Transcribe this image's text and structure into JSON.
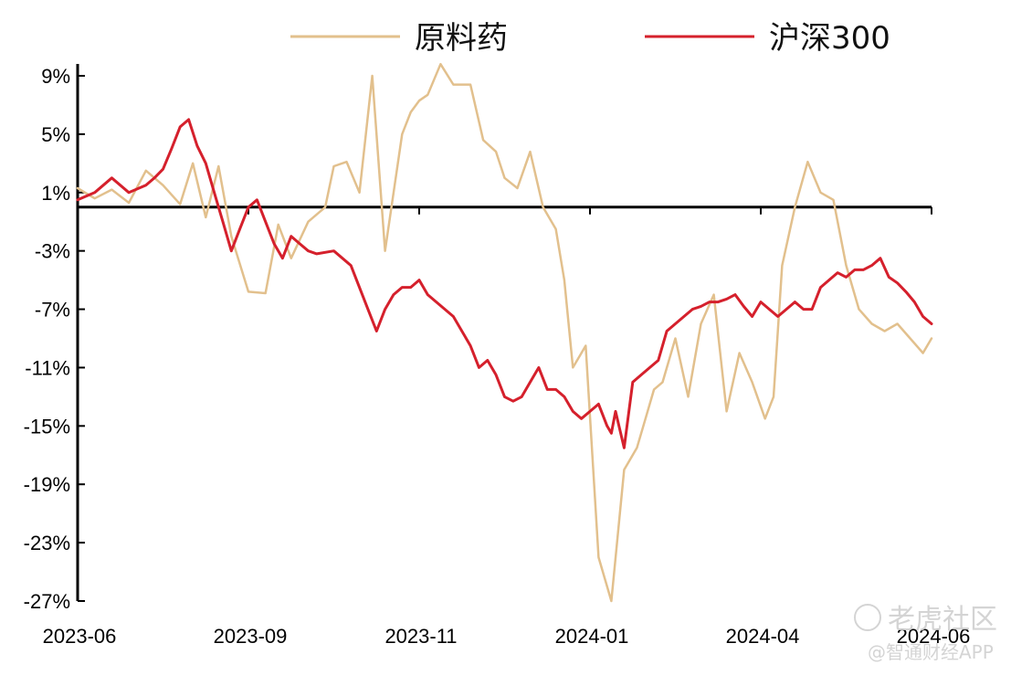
{
  "chart_data": {
    "type": "line",
    "title": "",
    "xlabel": "",
    "ylabel": "",
    "ylim": [
      -27,
      11
    ],
    "y_ticks": [
      "9%",
      "5%",
      "1%",
      "-3%",
      "-7%",
      "-11%",
      "-15%",
      "-19%",
      "-23%",
      "-27%"
    ],
    "x_ticks": [
      "2023-06",
      "2023-09",
      "2023-11",
      "2024-01",
      "2024-04",
      "2024-06"
    ],
    "baseline": 0,
    "legend_position": "top",
    "series": [
      {
        "name": "原料药",
        "color": "#e2c08d",
        "x": [
          0,
          0.02,
          0.04,
          0.06,
          0.08,
          0.1,
          0.12,
          0.135,
          0.15,
          0.165,
          0.18,
          0.2,
          0.22,
          0.235,
          0.25,
          0.27,
          0.29,
          0.3,
          0.315,
          0.33,
          0.345,
          0.36,
          0.38,
          0.39,
          0.4,
          0.41,
          0.425,
          0.44,
          0.46,
          0.475,
          0.49,
          0.5,
          0.515,
          0.53,
          0.545,
          0.56,
          0.57,
          0.58,
          0.595,
          0.61,
          0.625,
          0.64,
          0.655,
          0.665,
          0.675,
          0.685,
          0.7,
          0.715,
          0.73,
          0.745,
          0.76,
          0.775,
          0.79,
          0.805,
          0.815,
          0.825,
          0.84,
          0.855,
          0.87,
          0.885,
          0.9,
          0.915,
          0.93,
          0.945,
          0.96,
          0.975,
          0.99,
          1.0
        ],
        "y": [
          1.3,
          0.6,
          1.2,
          0.3,
          2.5,
          1.5,
          0.2,
          3.0,
          -0.7,
          2.8,
          -2.0,
          -5.8,
          -5.9,
          -1.2,
          -3.5,
          -1.0,
          0.0,
          2.8,
          3.1,
          1.0,
          9.0,
          -3.0,
          5.0,
          6.5,
          7.3,
          7.7,
          9.8,
          8.4,
          8.4,
          4.6,
          3.8,
          2.0,
          1.3,
          3.8,
          0.0,
          -1.5,
          -5.0,
          -11.0,
          -9.5,
          -24.0,
          -27.0,
          -18.0,
          -16.5,
          -14.5,
          -12.5,
          -12.0,
          -9.0,
          -13.0,
          -8.0,
          -6.0,
          -14.0,
          -10.0,
          -12.0,
          -14.5,
          -13.0,
          -4.0,
          0.0,
          3.1,
          1.0,
          0.5,
          -4.0,
          -7.0,
          -8.0,
          -8.5,
          -8.0,
          -9.0,
          -10.0,
          -9.0
        ]
      },
      {
        "name": "沪深300",
        "color": "#d5202c",
        "x": [
          0,
          0.02,
          0.04,
          0.06,
          0.08,
          0.09,
          0.1,
          0.11,
          0.12,
          0.13,
          0.14,
          0.15,
          0.16,
          0.17,
          0.18,
          0.19,
          0.2,
          0.21,
          0.22,
          0.23,
          0.24,
          0.25,
          0.26,
          0.27,
          0.28,
          0.3,
          0.32,
          0.34,
          0.35,
          0.36,
          0.37,
          0.38,
          0.39,
          0.4,
          0.41,
          0.42,
          0.44,
          0.46,
          0.47,
          0.48,
          0.49,
          0.5,
          0.51,
          0.52,
          0.53,
          0.54,
          0.55,
          0.56,
          0.57,
          0.58,
          0.59,
          0.6,
          0.61,
          0.62,
          0.625,
          0.63,
          0.64,
          0.65,
          0.66,
          0.67,
          0.68,
          0.69,
          0.7,
          0.71,
          0.72,
          0.73,
          0.74,
          0.75,
          0.76,
          0.77,
          0.78,
          0.79,
          0.8,
          0.81,
          0.82,
          0.83,
          0.84,
          0.85,
          0.86,
          0.87,
          0.88,
          0.89,
          0.9,
          0.91,
          0.92,
          0.93,
          0.94,
          0.95,
          0.96,
          0.97,
          0.98,
          0.99,
          1.0
        ],
        "y": [
          0.5,
          1.0,
          2.0,
          1.0,
          1.5,
          2.0,
          2.6,
          4.0,
          5.5,
          6.0,
          4.2,
          3.0,
          1.0,
          -1.0,
          -3.0,
          -1.5,
          0.0,
          0.5,
          -1.0,
          -2.5,
          -3.5,
          -2.0,
          -2.5,
          -3.0,
          -3.2,
          -3.0,
          -4.0,
          -7.0,
          -8.5,
          -7.0,
          -6.0,
          -5.5,
          -5.5,
          -5.0,
          -6.0,
          -6.5,
          -7.5,
          -9.5,
          -11.0,
          -10.5,
          -11.5,
          -13.0,
          -13.3,
          -13.0,
          -12.0,
          -11.0,
          -12.5,
          -12.5,
          -13.0,
          -14.0,
          -14.5,
          -14.0,
          -13.5,
          -15.0,
          -15.5,
          -14.0,
          -16.5,
          -12.0,
          -11.5,
          -11.0,
          -10.5,
          -8.5,
          -8.0,
          -7.5,
          -7.0,
          -6.8,
          -6.5,
          -6.5,
          -6.3,
          -6.0,
          -6.8,
          -7.5,
          -6.5,
          -7.0,
          -7.5,
          -7.0,
          -6.5,
          -7.0,
          -7.0,
          -5.5,
          -5.0,
          -4.5,
          -4.8,
          -4.3,
          -4.3,
          -4.0,
          -3.5,
          -4.8,
          -5.2,
          -5.8,
          -6.5,
          -7.5,
          -8.0
        ]
      }
    ]
  },
  "watermark": {
    "top_text": "老虎社区",
    "bottom_text": "@智通财经APP"
  }
}
